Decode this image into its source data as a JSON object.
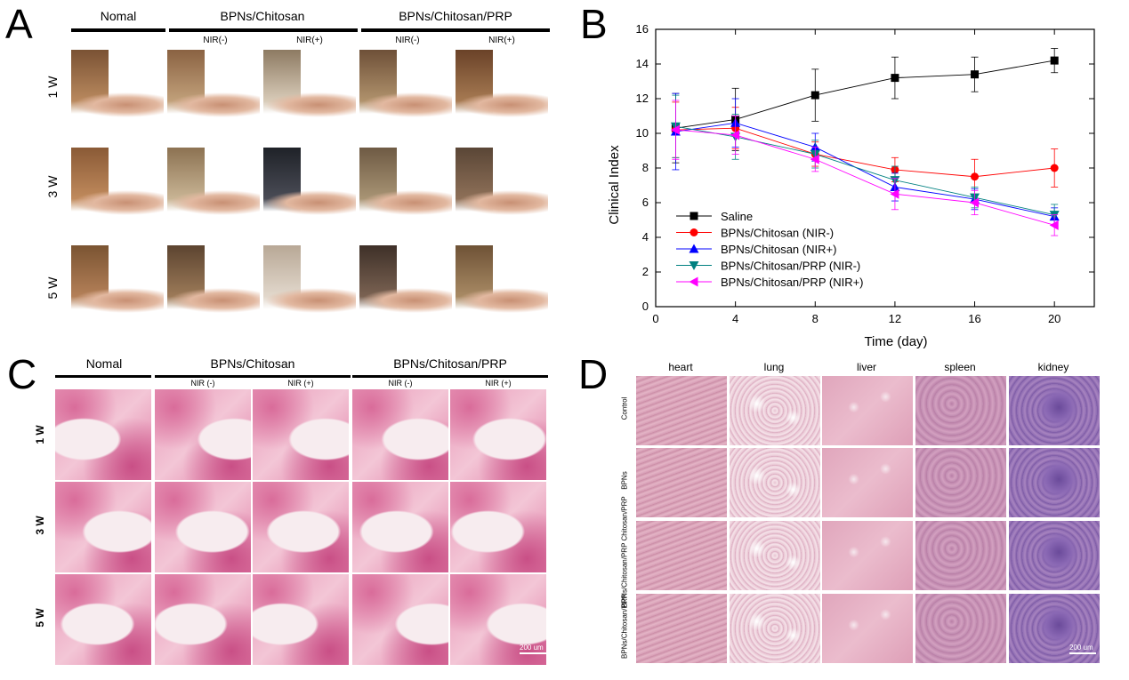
{
  "panels": {
    "a": "A",
    "b": "B",
    "c": "C",
    "d": "D"
  },
  "panelA": {
    "headers": [
      "Nomal",
      "BPNs/Chitosan",
      "BPNs/Chitosan/PRP"
    ],
    "subheaders": [
      "NIR(-)",
      "NIR(+)",
      "NIR(-)",
      "NIR(+)"
    ],
    "rows": [
      "1 W",
      "3 W",
      "5 W"
    ]
  },
  "panelC": {
    "headers": [
      "Nomal",
      "BPNs/Chitosan",
      "BPNs/Chitosan/PRP"
    ],
    "subheaders": [
      "NIR (-)",
      "NIR (+)",
      "NIR (-)",
      "NIR (+)"
    ],
    "rows": [
      "1 W",
      "3 W",
      "5 W"
    ],
    "scale": "200 um"
  },
  "panelD": {
    "columns": [
      "heart",
      "lung",
      "liver",
      "spleen",
      "kidney"
    ],
    "rows": [
      "Control",
      "BPNs",
      "BPNs/Chitosan/PRP Chitosan/PRP",
      "BPNs/Chitosan/PRP"
    ],
    "scale": "200 um"
  },
  "chart_data": {
    "type": "line",
    "xlabel": "Time (day)",
    "ylabel": "Clinical Index",
    "xlim": [
      0,
      22
    ],
    "ylim": [
      0,
      16
    ],
    "xticks": [
      0,
      4,
      8,
      12,
      16,
      20
    ],
    "yticks": [
      0,
      2,
      4,
      6,
      8,
      10,
      12,
      14,
      16
    ],
    "x": [
      1,
      4,
      8,
      12,
      16,
      20
    ],
    "legend_position": "bottom-left",
    "series": [
      {
        "name": "Saline",
        "color": "#000000",
        "marker": "square",
        "values": [
          10.3,
          10.8,
          12.2,
          13.2,
          13.4,
          14.2
        ],
        "errors": [
          2.0,
          1.8,
          1.5,
          1.2,
          1.0,
          0.7
        ]
      },
      {
        "name": "BPNs/Chitosan (NIR-)",
        "color": "#ff0000",
        "marker": "circle",
        "values": [
          10.2,
          10.3,
          8.8,
          7.9,
          7.5,
          8.0
        ],
        "errors": [
          1.6,
          1.2,
          0.7,
          0.7,
          1.0,
          1.1
        ]
      },
      {
        "name": "BPNs/Chitosan (NIR+)",
        "color": "#0000ff",
        "marker": "triangle-up",
        "values": [
          10.1,
          10.6,
          9.2,
          6.9,
          6.2,
          5.2
        ],
        "errors": [
          2.2,
          1.4,
          0.8,
          0.8,
          0.6,
          0.5
        ]
      },
      {
        "name": "BPNs/Chitosan/PRP (NIR-)",
        "color": "#008080",
        "marker": "triangle-down",
        "values": [
          10.4,
          9.8,
          8.8,
          7.3,
          6.3,
          5.3
        ],
        "errors": [
          1.8,
          1.3,
          0.8,
          0.8,
          0.6,
          0.6
        ]
      },
      {
        "name": "BPNs/Chitosan/PRP (NIR+)",
        "color": "#ff00ff",
        "marker": "triangle-left",
        "values": [
          10.2,
          9.9,
          8.5,
          6.5,
          6.0,
          4.7
        ],
        "errors": [
          1.7,
          1.1,
          0.7,
          0.9,
          0.7,
          0.6
        ]
      }
    ]
  }
}
